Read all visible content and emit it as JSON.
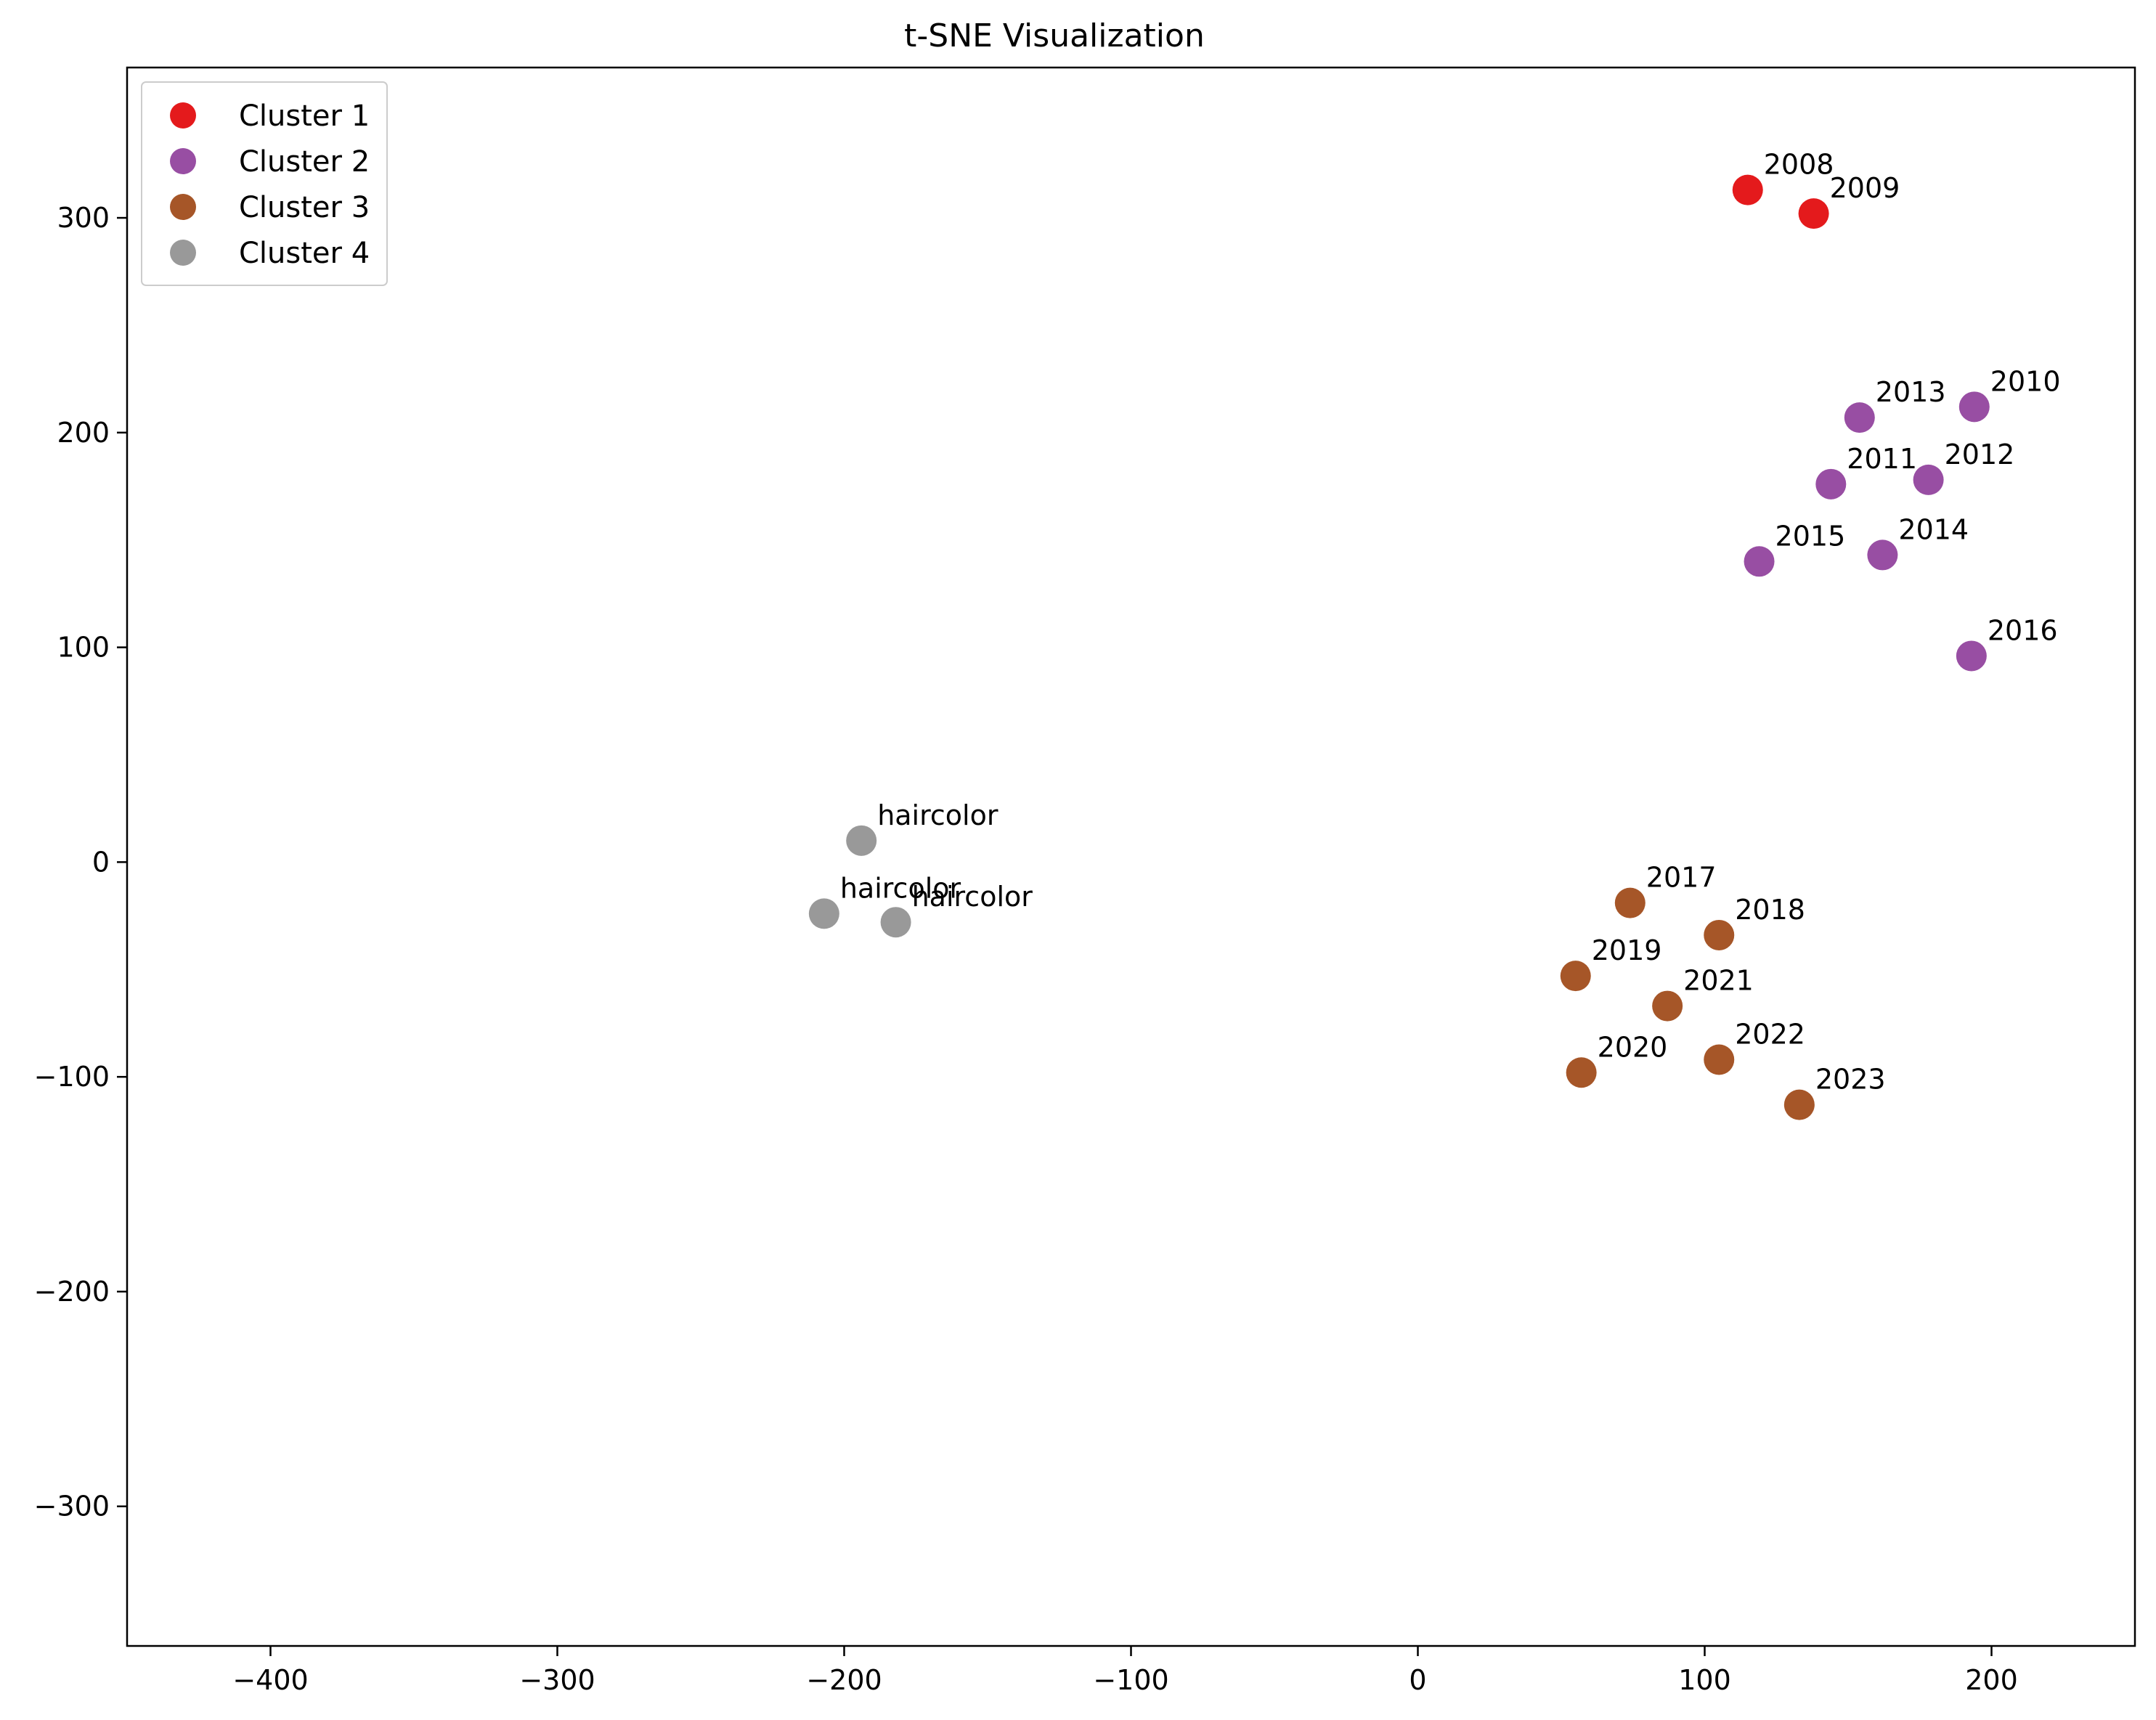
{
  "chart_data": {
    "type": "scatter",
    "title": "t-SNE Visualization",
    "xlabel": "",
    "ylabel": "",
    "xlim": [
      -450,
      250
    ],
    "ylim": [
      -365,
      370
    ],
    "xticks": [
      -400,
      -300,
      -200,
      -100,
      0,
      100,
      200
    ],
    "yticks": [
      -300,
      -200,
      -100,
      0,
      100,
      200,
      300
    ],
    "grid": false,
    "legend_position": "top-left",
    "series": [
      {
        "name": "Cluster 1",
        "color": "#e41a1c",
        "points": [
          {
            "x": 115,
            "y": 313,
            "label": "2008"
          },
          {
            "x": 138,
            "y": 302,
            "label": "2009"
          }
        ]
      },
      {
        "name": "Cluster 2",
        "color": "#984ea3",
        "points": [
          {
            "x": 194,
            "y": 212,
            "label": "2010"
          },
          {
            "x": 144,
            "y": 176,
            "label": "2011"
          },
          {
            "x": 178,
            "y": 178,
            "label": "2012"
          },
          {
            "x": 154,
            "y": 207,
            "label": "2013"
          },
          {
            "x": 162,
            "y": 143,
            "label": "2014"
          },
          {
            "x": 119,
            "y": 140,
            "label": "2015"
          },
          {
            "x": 193,
            "y": 96,
            "label": "2016"
          }
        ]
      },
      {
        "name": "Cluster 3",
        "color": "#a65628",
        "points": [
          {
            "x": 74,
            "y": -19,
            "label": "2017"
          },
          {
            "x": 105,
            "y": -34,
            "label": "2018"
          },
          {
            "x": 55,
            "y": -53,
            "label": "2019"
          },
          {
            "x": 57,
            "y": -98,
            "label": "2020"
          },
          {
            "x": 87,
            "y": -67,
            "label": "2021"
          },
          {
            "x": 105,
            "y": -92,
            "label": "2022"
          },
          {
            "x": 133,
            "y": -113,
            "label": "2023"
          }
        ]
      },
      {
        "name": "Cluster 4",
        "color": "#999999",
        "points": [
          {
            "x": -194,
            "y": 10,
            "label": "haircolor"
          },
          {
            "x": -207,
            "y": -24,
            "label": "haircolor"
          },
          {
            "x": -182,
            "y": -28,
            "label": "haircolor"
          }
        ]
      }
    ]
  }
}
